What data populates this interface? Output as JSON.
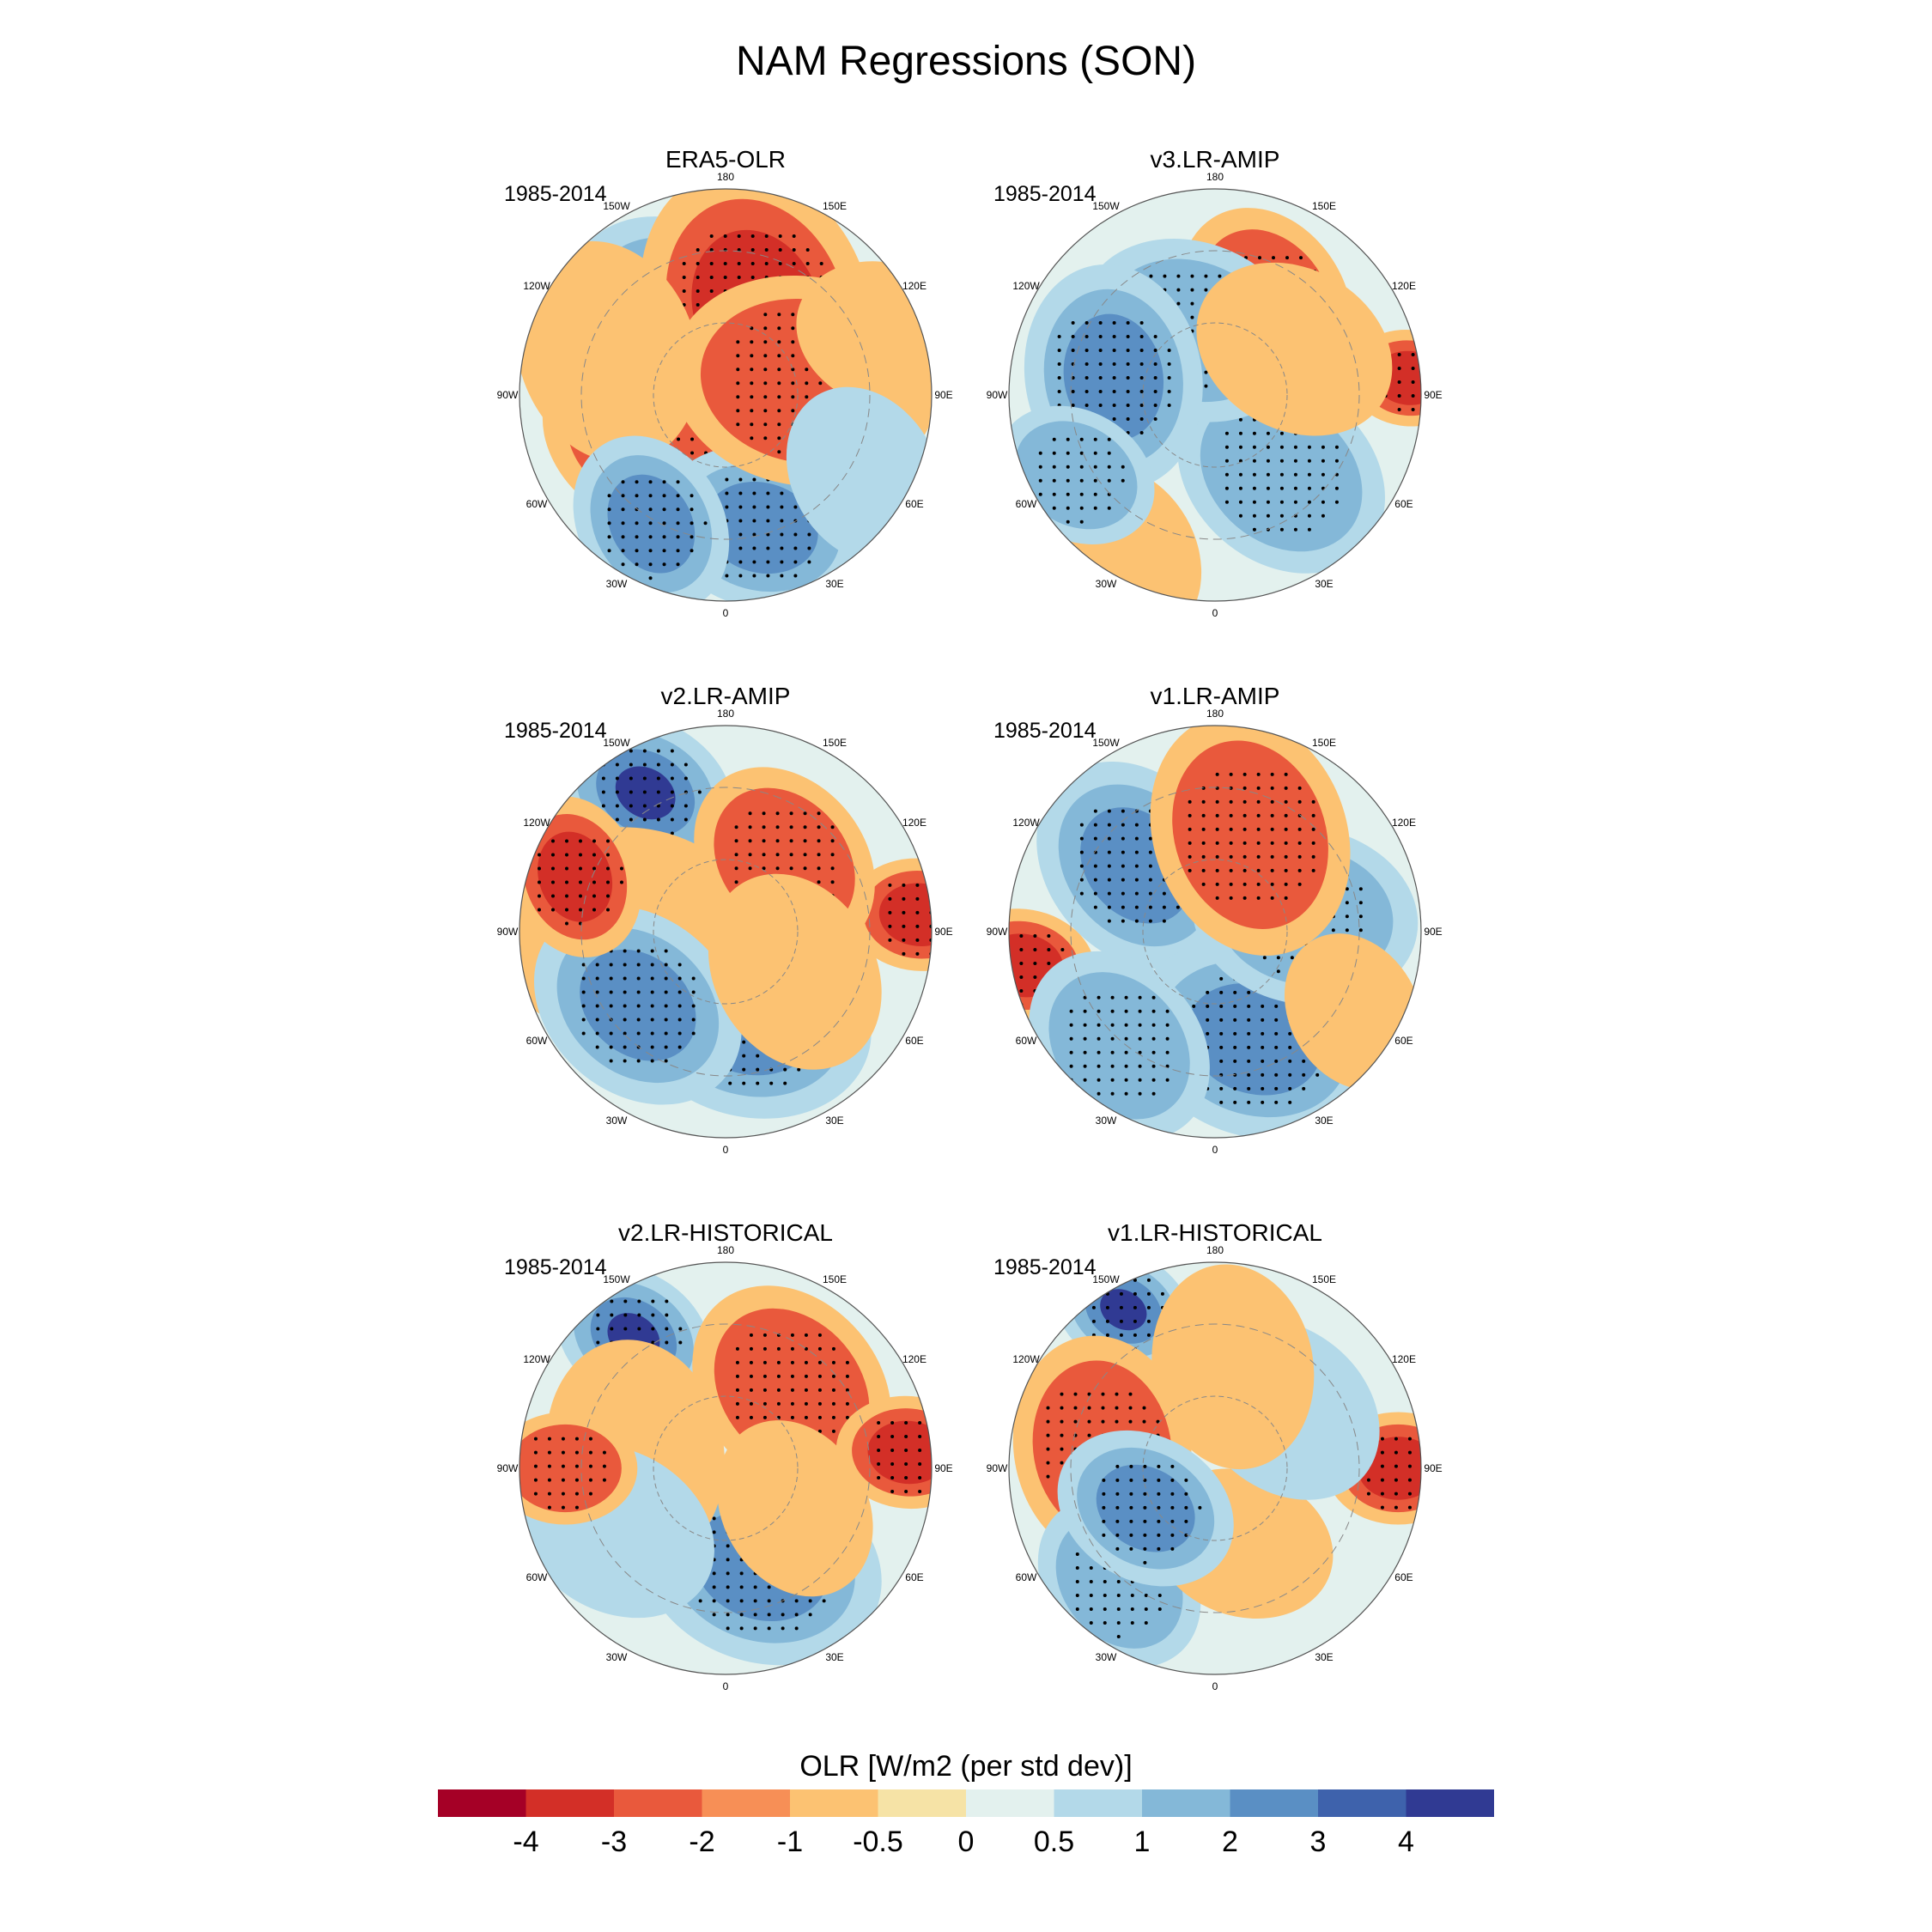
{
  "title": "NAM Regressions (SON)",
  "panels": [
    {
      "title": "ERA5-OLR",
      "period": "1985-2014",
      "blobs": [
        [
          40,
          40,
          0.62,
          3
        ],
        [
          210,
          42,
          0.55,
          3
        ],
        [
          160,
          40,
          0.7,
          -3
        ],
        [
          300,
          38,
          0.55,
          -2
        ],
        [
          15,
          60,
          0.5,
          3
        ],
        [
          100,
          35,
          0.65,
          -2
        ],
        [
          250,
          55,
          0.55,
          -1
        ],
        [
          330,
          65,
          0.45,
          3
        ],
        [
          110,
          75,
          0.45,
          -1
        ],
        [
          60,
          70,
          0.45,
          1
        ]
      ]
    },
    {
      "title": "v3.LR-AMIP",
      "period": "1985-2014",
      "blobs": [
        [
          40,
          45,
          0.55,
          2
        ],
        [
          150,
          45,
          0.5,
          -2
        ],
        [
          200,
          30,
          0.55,
          2
        ],
        [
          260,
          45,
          0.55,
          3
        ],
        [
          95,
          85,
          0.3,
          -3
        ],
        [
          330,
          80,
          0.45,
          -1
        ],
        [
          120,
          40,
          0.5,
          -1
        ],
        [
          300,
          70,
          0.4,
          2
        ]
      ]
    },
    {
      "title": "v2.LR-AMIP",
      "period": "1985-2014",
      "blobs": [
        [
          15,
          40,
          0.6,
          3
        ],
        [
          210,
          70,
          0.45,
          4
        ],
        [
          270,
          45,
          0.65,
          -1
        ],
        [
          310,
          50,
          0.55,
          3
        ],
        [
          95,
          85,
          0.35,
          -3
        ],
        [
          140,
          40,
          0.5,
          -2
        ],
        [
          60,
          35,
          0.5,
          -1
        ],
        [
          250,
          70,
          0.4,
          -3
        ]
      ]
    },
    {
      "title": "v1.LR-AMIP",
      "period": "1985-2014",
      "blobs": [
        [
          230,
          45,
          0.55,
          3
        ],
        [
          20,
          50,
          0.6,
          3
        ],
        [
          100,
          40,
          0.55,
          2
        ],
        [
          160,
          45,
          0.6,
          -2
        ],
        [
          280,
          85,
          0.35,
          -3
        ],
        [
          320,
          65,
          0.5,
          2
        ],
        [
          60,
          70,
          0.4,
          -1
        ]
      ]
    },
    {
      "title": "v2.LR-HISTORICAL",
      "period": "1985-2014",
      "blobs": [
        [
          20,
          45,
          0.6,
          3
        ],
        [
          215,
          70,
          0.4,
          4
        ],
        [
          140,
          45,
          0.55,
          -2
        ],
        [
          260,
          40,
          0.55,
          -1
        ],
        [
          300,
          55,
          0.5,
          1
        ],
        [
          95,
          80,
          0.35,
          -3
        ],
        [
          270,
          70,
          0.35,
          -2
        ],
        [
          60,
          35,
          0.45,
          -1
        ]
      ]
    },
    {
      "title": "v1.LR-HISTORICAL",
      "period": "1985-2014",
      "blobs": [
        [
          210,
          80,
          0.35,
          4
        ],
        [
          260,
          50,
          0.55,
          -2
        ],
        [
          90,
          80,
          0.35,
          -3
        ],
        [
          320,
          65,
          0.45,
          2
        ],
        [
          20,
          35,
          0.45,
          -1
        ],
        [
          130,
          40,
          0.5,
          1
        ],
        [
          170,
          45,
          0.5,
          -1
        ],
        [
          300,
          35,
          0.45,
          3
        ]
      ]
    }
  ],
  "colorbar": {
    "title": "OLR [W/m2 (per std dev)]",
    "colors": [
      "#a50026",
      "#d32f27",
      "#e9593c",
      "#f78f56",
      "#fcc272",
      "#f6e3a6",
      "#e3f1ee",
      "#b3d9e9",
      "#84b8d8",
      "#5a8fc4",
      "#3e62ac",
      "#303a93"
    ],
    "labels": [
      "-4",
      "-3",
      "-2",
      "-1",
      "-0.5",
      "0",
      "0.5",
      "1",
      "2",
      "3",
      "4"
    ],
    "boundaries": [
      -4,
      -3,
      -2,
      -1,
      -0.5,
      0,
      0.5,
      1,
      2,
      3,
      4
    ]
  },
  "lon_labels": [
    "180",
    "150E",
    "120E",
    "90E",
    "60E",
    "30E",
    "0",
    "30W",
    "60W",
    "90W",
    "120W",
    "150W"
  ],
  "lon_angles": [
    180,
    150,
    120,
    90,
    60,
    30,
    0,
    -30,
    -60,
    -90,
    -120,
    -150
  ]
}
